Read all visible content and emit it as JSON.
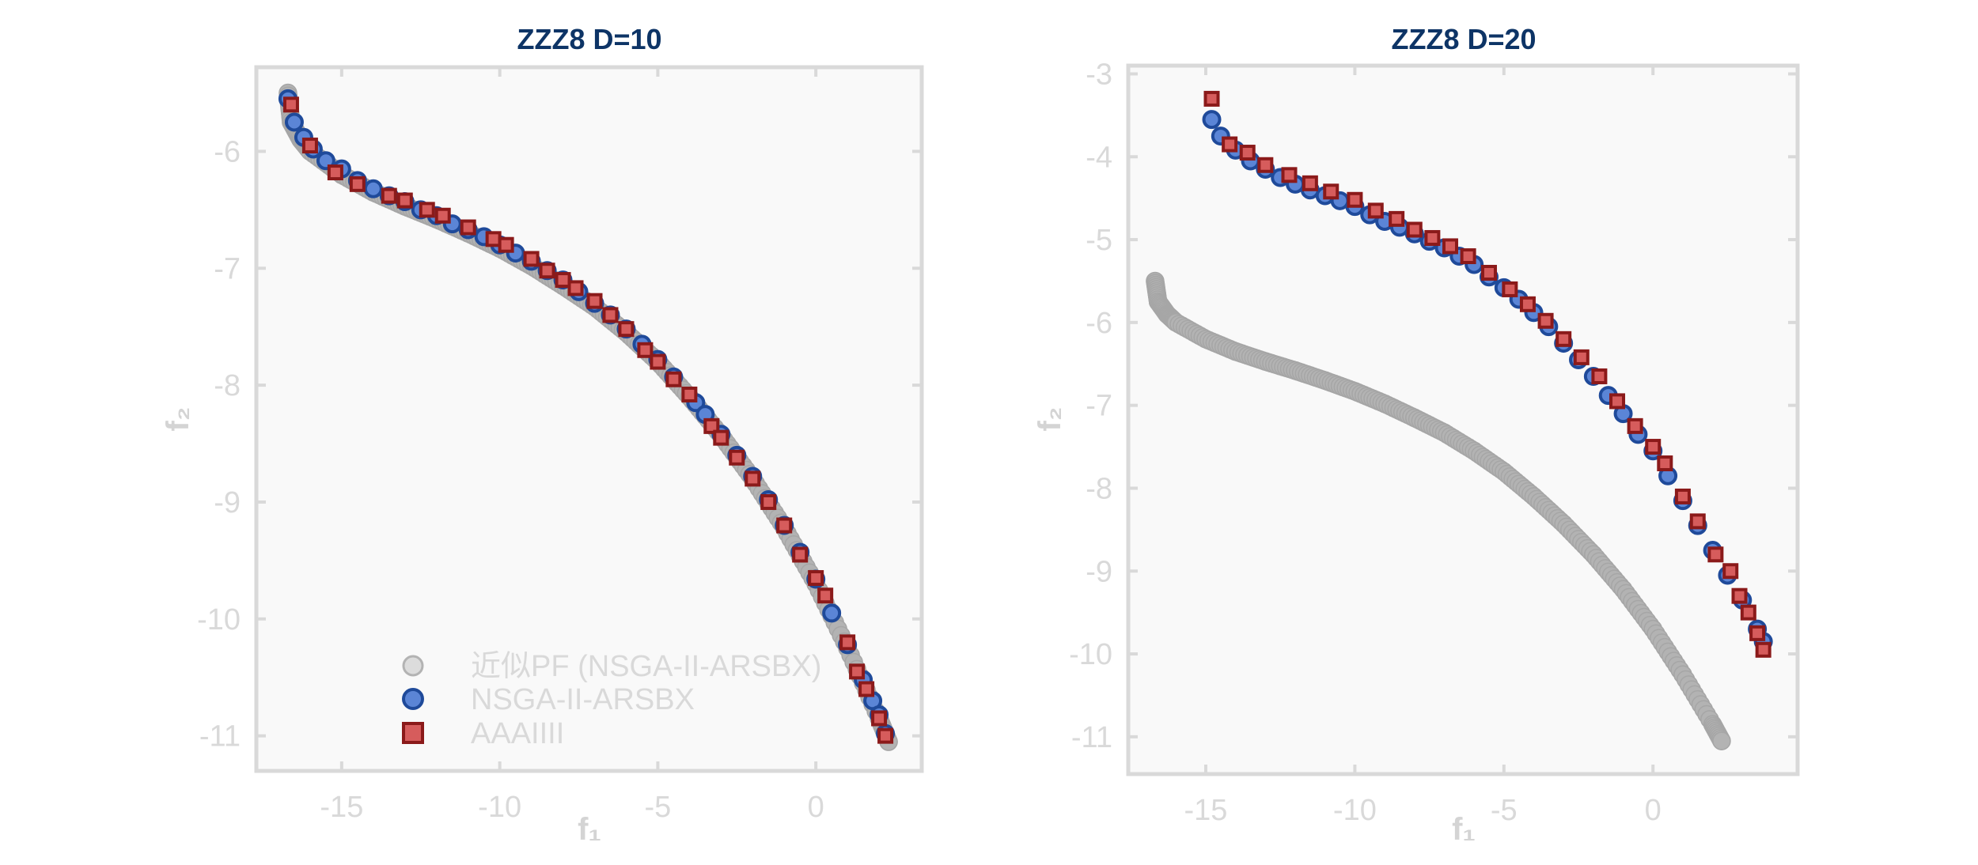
{
  "chart_data": [
    {
      "type": "scatter",
      "title": "ZZZ8 D=10",
      "xlabel": "f₁",
      "ylabel": "f₂",
      "xlim": [
        -17.7,
        3.35
      ],
      "ylim": [
        -11.3,
        -5.28
      ],
      "xticks": [
        -15,
        -10,
        -5,
        0
      ],
      "yticks": [
        -11,
        -10,
        -9,
        -8,
        -7,
        -6
      ],
      "grid": false,
      "legend": {
        "placement": "bottom-center",
        "entries": [
          "近似PF (NSGA-II-ARSBX)",
          "NSGA-II-ARSBX",
          "AAAIIII"
        ]
      },
      "series": [
        {
          "name": "近似PF (NSGA-II-ARSBX)",
          "marker": "circle",
          "color": "#b3b3b3",
          "points": [
            [
              -16.7,
              -5.5
            ],
            [
              -16.6,
              -5.75
            ],
            [
              -16.3,
              -5.9
            ],
            [
              -16,
              -6.0
            ],
            [
              -15,
              -6.2
            ],
            [
              -14,
              -6.35
            ],
            [
              -13,
              -6.47
            ],
            [
              -12,
              -6.58
            ],
            [
              -11,
              -6.7
            ],
            [
              -10,
              -6.83
            ],
            [
              -9,
              -6.98
            ],
            [
              -8,
              -7.15
            ],
            [
              -7,
              -7.33
            ],
            [
              -6,
              -7.55
            ],
            [
              -5,
              -7.8
            ],
            [
              -4,
              -8.1
            ],
            [
              -3,
              -8.43
            ],
            [
              -2,
              -8.8
            ],
            [
              -1,
              -9.22
            ],
            [
              0,
              -9.7
            ],
            [
              1,
              -10.25
            ],
            [
              2,
              -10.85
            ],
            [
              2.3,
              -11.05
            ]
          ]
        },
        {
          "name": "NSGA-II-ARSBX",
          "marker": "circle",
          "color": "#5b85d6",
          "points": [
            [
              -16.7,
              -5.55
            ],
            [
              -16.5,
              -5.75
            ],
            [
              -16.2,
              -5.88
            ],
            [
              -15.9,
              -5.98
            ],
            [
              -15.5,
              -6.08
            ],
            [
              -15,
              -6.15
            ],
            [
              -14.5,
              -6.25
            ],
            [
              -14,
              -6.32
            ],
            [
              -13.5,
              -6.38
            ],
            [
              -13,
              -6.43
            ],
            [
              -12.5,
              -6.5
            ],
            [
              -12,
              -6.55
            ],
            [
              -11.5,
              -6.62
            ],
            [
              -11,
              -6.67
            ],
            [
              -10.5,
              -6.73
            ],
            [
              -10,
              -6.8
            ],
            [
              -9.5,
              -6.87
            ],
            [
              -9,
              -6.94
            ],
            [
              -8.5,
              -7.02
            ],
            [
              -8,
              -7.1
            ],
            [
              -7.5,
              -7.2
            ],
            [
              -7,
              -7.3
            ],
            [
              -6.5,
              -7.4
            ],
            [
              -6,
              -7.52
            ],
            [
              -5.5,
              -7.65
            ],
            [
              -5,
              -7.78
            ],
            [
              -4.5,
              -7.93
            ],
            [
              -3.8,
              -8.15
            ],
            [
              -3.5,
              -8.25
            ],
            [
              -3,
              -8.42
            ],
            [
              -2.5,
              -8.6
            ],
            [
              -2,
              -8.78
            ],
            [
              -1.5,
              -8.98
            ],
            [
              -1,
              -9.2
            ],
            [
              -0.5,
              -9.43
            ],
            [
              0,
              -9.66
            ],
            [
              0.5,
              -9.95
            ],
            [
              1,
              -10.22
            ],
            [
              1.5,
              -10.52
            ],
            [
              1.8,
              -10.7
            ],
            [
              2,
              -10.82
            ],
            [
              2.2,
              -10.98
            ]
          ]
        },
        {
          "name": "AAAIIII",
          "marker": "square",
          "color": "#d65c5c",
          "points": [
            [
              -16.6,
              -5.6
            ],
            [
              -16,
              -5.95
            ],
            [
              -15.2,
              -6.18
            ],
            [
              -14.5,
              -6.28
            ],
            [
              -13.5,
              -6.38
            ],
            [
              -13,
              -6.42
            ],
            [
              -12.3,
              -6.5
            ],
            [
              -11.8,
              -6.55
            ],
            [
              -11,
              -6.65
            ],
            [
              -10.2,
              -6.75
            ],
            [
              -9.8,
              -6.8
            ],
            [
              -9,
              -6.92
            ],
            [
              -8.5,
              -7.02
            ],
            [
              -8,
              -7.1
            ],
            [
              -7.6,
              -7.17
            ],
            [
              -7,
              -7.28
            ],
            [
              -6.5,
              -7.4
            ],
            [
              -6,
              -7.52
            ],
            [
              -5.4,
              -7.7
            ],
            [
              -5,
              -7.8
            ],
            [
              -4.5,
              -7.95
            ],
            [
              -4,
              -8.08
            ],
            [
              -3.3,
              -8.35
            ],
            [
              -3,
              -8.45
            ],
            [
              -2.5,
              -8.62
            ],
            [
              -2,
              -8.8
            ],
            [
              -1.5,
              -9.0
            ],
            [
              -1,
              -9.2
            ],
            [
              -0.5,
              -9.45
            ],
            [
              0,
              -9.65
            ],
            [
              0.3,
              -9.8
            ],
            [
              1,
              -10.2
            ],
            [
              1.3,
              -10.45
            ],
            [
              1.6,
              -10.6
            ],
            [
              2,
              -10.85
            ],
            [
              2.2,
              -11.0
            ]
          ]
        }
      ]
    },
    {
      "type": "scatter",
      "title": "ZZZ8 D=20",
      "xlabel": "f₁",
      "ylabel": "f₂",
      "xlim": [
        -17.6,
        4.85
      ],
      "ylim": [
        -11.45,
        -2.9
      ],
      "xticks": [
        -15,
        -10,
        -5,
        0
      ],
      "yticks": [
        -11,
        -10,
        -9,
        -8,
        -7,
        -6,
        -5,
        -4,
        -3
      ],
      "grid": false,
      "series": [
        {
          "name": "近似PF (NSGA-II-ARSBX)",
          "marker": "circle",
          "color": "#b3b3b3",
          "points": [
            [
              -16.7,
              -5.5
            ],
            [
              -16.6,
              -5.75
            ],
            [
              -16.3,
              -5.9
            ],
            [
              -16,
              -6.0
            ],
            [
              -15,
              -6.2
            ],
            [
              -14,
              -6.35
            ],
            [
              -13,
              -6.47
            ],
            [
              -12,
              -6.58
            ],
            [
              -11,
              -6.7
            ],
            [
              -10,
              -6.83
            ],
            [
              -9,
              -6.98
            ],
            [
              -8,
              -7.15
            ],
            [
              -7,
              -7.33
            ],
            [
              -6,
              -7.55
            ],
            [
              -5,
              -7.8
            ],
            [
              -4,
              -8.1
            ],
            [
              -3,
              -8.43
            ],
            [
              -2,
              -8.8
            ],
            [
              -1,
              -9.22
            ],
            [
              0,
              -9.7
            ],
            [
              1,
              -10.25
            ],
            [
              2,
              -10.85
            ],
            [
              2.3,
              -11.05
            ]
          ]
        },
        {
          "name": "NSGA-II-ARSBX",
          "marker": "circle",
          "color": "#5b85d6",
          "points": [
            [
              -14.8,
              -3.55
            ],
            [
              -14.5,
              -3.75
            ],
            [
              -14,
              -3.92
            ],
            [
              -13.5,
              -4.05
            ],
            [
              -13,
              -4.15
            ],
            [
              -12.5,
              -4.25
            ],
            [
              -12,
              -4.33
            ],
            [
              -11.5,
              -4.4
            ],
            [
              -11,
              -4.47
            ],
            [
              -10.5,
              -4.53
            ],
            [
              -10,
              -4.6
            ],
            [
              -9.5,
              -4.7
            ],
            [
              -9,
              -4.78
            ],
            [
              -8.5,
              -4.85
            ],
            [
              -8,
              -4.93
            ],
            [
              -7.5,
              -5.02
            ],
            [
              -7,
              -5.1
            ],
            [
              -6.5,
              -5.2
            ],
            [
              -6,
              -5.3
            ],
            [
              -5.5,
              -5.45
            ],
            [
              -5,
              -5.58
            ],
            [
              -4.5,
              -5.72
            ],
            [
              -4,
              -5.88
            ],
            [
              -3.5,
              -6.05
            ],
            [
              -3,
              -6.25
            ],
            [
              -2.5,
              -6.45
            ],
            [
              -2,
              -6.65
            ],
            [
              -1.5,
              -6.88
            ],
            [
              -1,
              -7.1
            ],
            [
              -0.5,
              -7.35
            ],
            [
              0,
              -7.55
            ],
            [
              0.5,
              -7.85
            ],
            [
              1,
              -8.15
            ],
            [
              1.5,
              -8.45
            ],
            [
              2,
              -8.75
            ],
            [
              2.5,
              -9.05
            ],
            [
              3,
              -9.35
            ],
            [
              3.5,
              -9.7
            ],
            [
              3.7,
              -9.85
            ]
          ]
        },
        {
          "name": "AAAIIII",
          "marker": "square",
          "color": "#d65c5c",
          "points": [
            [
              -14.8,
              -3.3
            ],
            [
              -14.2,
              -3.85
            ],
            [
              -13.6,
              -3.95
            ],
            [
              -13,
              -4.1
            ],
            [
              -12.2,
              -4.22
            ],
            [
              -11.5,
              -4.32
            ],
            [
              -10.8,
              -4.42
            ],
            [
              -10,
              -4.52
            ],
            [
              -9.3,
              -4.65
            ],
            [
              -8.6,
              -4.75
            ],
            [
              -8,
              -4.88
            ],
            [
              -7.4,
              -4.98
            ],
            [
              -6.8,
              -5.08
            ],
            [
              -6.2,
              -5.2
            ],
            [
              -5.5,
              -5.4
            ],
            [
              -4.8,
              -5.6
            ],
            [
              -4.2,
              -5.78
            ],
            [
              -3.6,
              -5.98
            ],
            [
              -3,
              -6.2
            ],
            [
              -2.4,
              -6.42
            ],
            [
              -1.8,
              -6.65
            ],
            [
              -1.2,
              -6.95
            ],
            [
              -0.6,
              -7.25
            ],
            [
              0,
              -7.5
            ],
            [
              0.4,
              -7.7
            ],
            [
              1,
              -8.1
            ],
            [
              1.5,
              -8.4
            ],
            [
              2.1,
              -8.8
            ],
            [
              2.6,
              -9.0
            ],
            [
              2.9,
              -9.3
            ],
            [
              3.2,
              -9.5
            ],
            [
              3.5,
              -9.75
            ],
            [
              3.7,
              -9.95
            ]
          ]
        }
      ]
    }
  ],
  "colors": {
    "title": "#0d3466",
    "axis": "#d9d9d9",
    "background": "#f9f9f9",
    "pf_fill": "#b3b3b3",
    "pf_stroke": "#a6a6a6",
    "blue_fill": "#5b85d6",
    "blue_stroke": "#1f4a9a",
    "red_fill": "#d65c5c",
    "red_stroke": "#8b1a1a"
  }
}
